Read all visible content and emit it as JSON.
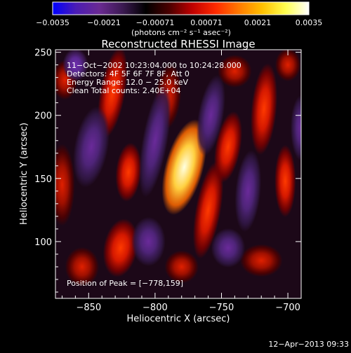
{
  "chart_data": {
    "type": "heatmap",
    "title": "Reconstructed RHESSI Image",
    "xlabel": "Heliocentric X (arcsec)",
    "ylabel": "Heliocentric Y (arcsec)",
    "xlim": [
      -875,
      -690
    ],
    "ylim": [
      55,
      252
    ],
    "xticks": [
      -850,
      -800,
      -750,
      -700
    ],
    "xtick_labels": [
      "−850",
      "−800",
      "−750",
      "−700"
    ],
    "yticks": [
      100,
      150,
      200,
      250
    ],
    "ytick_labels": [
      "100",
      "150",
      "200",
      "250"
    ],
    "colorbar": {
      "range": [
        -0.0035,
        0.0035
      ],
      "tick_labels": [
        "−0.0035",
        "−0.0021",
        "−0.00071",
        "0.00071",
        "0.0021",
        "0.0035"
      ],
      "unit_label": "(photons cm⁻² s⁻¹ asec⁻²)",
      "colors": [
        "#0000ff",
        "#4b1cb4",
        "#6a2a92",
        "#3c1a52",
        "#000000",
        "#4a0000",
        "#c00000",
        "#ff2a00",
        "#ff7a00",
        "#ffc000",
        "#ffff50",
        "#ffffff"
      ]
    },
    "info_lines": [
      "11−Oct−2002 10:23:04.000 to 10:24:28.000",
      "Detectors: 4F 5F 6F 7F 8F, Att 0",
      "Energy Range: 12.0 − 25.0 keV",
      "Clean    Total counts: 2.40E+04"
    ],
    "peak_label": "Position of Peak = [−778,159]",
    "peak": [
      -778,
      159
    ],
    "sources": [
      {
        "x": -778,
        "y": 159,
        "rx": 9,
        "ry": 30,
        "rot": 15,
        "amp": 1.0
      },
      {
        "x": -832,
        "y": 218,
        "rx": 6,
        "ry": 28,
        "rot": 10,
        "amp": 0.6
      },
      {
        "x": -820,
        "y": 155,
        "rx": 6,
        "ry": 18,
        "rot": 5,
        "amp": 0.55
      },
      {
        "x": -826,
        "y": 95,
        "rx": 8,
        "ry": 18,
        "rot": 10,
        "amp": 0.55
      },
      {
        "x": -790,
        "y": 215,
        "rx": 6,
        "ry": 20,
        "rot": 5,
        "amp": 0.45
      },
      {
        "x": -760,
        "y": 125,
        "rx": 6,
        "ry": 30,
        "rot": 10,
        "amp": 0.5
      },
      {
        "x": -745,
        "y": 175,
        "rx": 6,
        "ry": 22,
        "rot": 10,
        "amp": 0.55
      },
      {
        "x": -740,
        "y": 235,
        "rx": 8,
        "ry": 10,
        "rot": 0,
        "amp": 0.45
      },
      {
        "x": -718,
        "y": 205,
        "rx": 6,
        "ry": 28,
        "rot": 5,
        "amp": 0.5
      },
      {
        "x": -702,
        "y": 148,
        "rx": 5,
        "ry": 22,
        "rot": 0,
        "amp": 0.55
      },
      {
        "x": -868,
        "y": 228,
        "rx": 6,
        "ry": 12,
        "rot": 0,
        "amp": 0.4
      },
      {
        "x": -870,
        "y": 145,
        "rx": 6,
        "ry": 25,
        "rot": 0,
        "amp": 0.4
      },
      {
        "x": -855,
        "y": 80,
        "rx": 8,
        "ry": 12,
        "rot": 0,
        "amp": 0.35
      },
      {
        "x": -780,
        "y": 80,
        "rx": 8,
        "ry": 10,
        "rot": 0,
        "amp": 0.45
      },
      {
        "x": -720,
        "y": 85,
        "rx": 10,
        "ry": 10,
        "rot": 0,
        "amp": 0.35
      },
      {
        "x": -700,
        "y": 240,
        "rx": 6,
        "ry": 10,
        "rot": 0,
        "amp": 0.35
      },
      {
        "x": -848,
        "y": 175,
        "rx": 8,
        "ry": 25,
        "rot": 10,
        "amp": -0.45
      },
      {
        "x": -800,
        "y": 180,
        "rx": 6,
        "ry": 35,
        "rot": 10,
        "amp": -0.4
      },
      {
        "x": -758,
        "y": 200,
        "rx": 6,
        "ry": 25,
        "rot": 10,
        "amp": -0.45
      },
      {
        "x": -730,
        "y": 140,
        "rx": 6,
        "ry": 25,
        "rot": 5,
        "amp": -0.45
      },
      {
        "x": -860,
        "y": 240,
        "rx": 6,
        "ry": 10,
        "rot": 0,
        "amp": -0.55
      },
      {
        "x": -805,
        "y": 100,
        "rx": 8,
        "ry": 15,
        "rot": 0,
        "amp": -0.4
      },
      {
        "x": -745,
        "y": 95,
        "rx": 8,
        "ry": 12,
        "rot": 0,
        "amp": -0.35
      },
      {
        "x": -690,
        "y": 190,
        "rx": 5,
        "ry": 20,
        "rot": 0,
        "amp": -0.4
      }
    ]
  },
  "footer": {
    "timestamp": "12−Apr−2013 09:33"
  }
}
